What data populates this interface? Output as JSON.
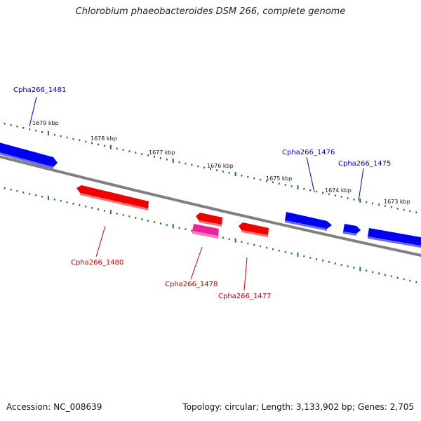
{
  "title": "Chlorobium phaeobacteroides DSM 266, complete genome",
  "accession": "Accession: NC_008639",
  "topology": "Topology: circular; Length: 3,133,902 bp; Genes: 2,705",
  "colors": {
    "backbone": "#808080",
    "forward_gene": "#0000ee",
    "reverse_gene": "#ee0000",
    "rna_gene": "#ee2299",
    "ticks": "#1a7a1a",
    "forward_label": "#0000cc",
    "reverse_label": "#cc0000"
  },
  "ticks": [
    {
      "label": "1679 kbp"
    },
    {
      "label": "1678 kbp"
    },
    {
      "label": "1677 kbp"
    },
    {
      "label": "1676 kbp"
    },
    {
      "label": "1675 kbp"
    },
    {
      "label": "1674 kbp"
    },
    {
      "label": "1673 kbp"
    }
  ],
  "genes": [
    {
      "name": "Cpha266_1481",
      "strand": "forward"
    },
    {
      "name": "Cpha266_1480",
      "strand": "reverse"
    },
    {
      "name": "Cpha266_1478",
      "strand": "reverse"
    },
    {
      "name": "Cpha266_1477",
      "strand": "reverse"
    },
    {
      "name": "Cpha266_1476",
      "strand": "forward"
    },
    {
      "name": "Cpha266_1475",
      "strand": "forward"
    }
  ]
}
